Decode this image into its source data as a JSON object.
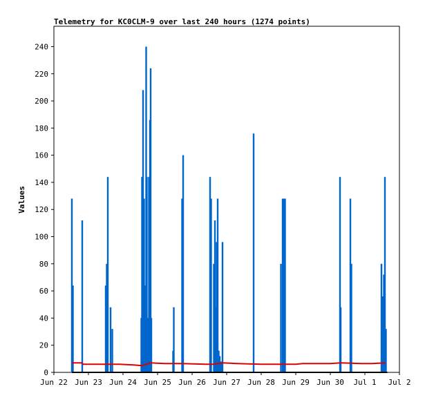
{
  "chart_data": {
    "type": "bar",
    "title": "Telemetry for KC0CLM-9 over last 240 hours (1274 points)",
    "xlabel": "",
    "ylabel": "Values",
    "ylim": [
      0,
      255
    ],
    "xlim_days": [
      0,
      10
    ],
    "x_unit": "days since Jun 22",
    "yticks": [
      0,
      20,
      40,
      60,
      80,
      100,
      120,
      140,
      160,
      180,
      200,
      220,
      240
    ],
    "xticks": [
      {
        "label": "Jun 22",
        "day": 0
      },
      {
        "label": "Jun 23",
        "day": 1
      },
      {
        "label": "Jun 24",
        "day": 2
      },
      {
        "label": "Jun 25",
        "day": 3
      },
      {
        "label": "Jun 26",
        "day": 4
      },
      {
        "label": "Jun 27",
        "day": 5
      },
      {
        "label": "Jun 28",
        "day": 6
      },
      {
        "label": "Jun 29",
        "day": 7
      },
      {
        "label": "Jun 30",
        "day": 8
      },
      {
        "label": "Jul 1",
        "day": 9
      },
      {
        "label": "Jul 2",
        "day": 10
      }
    ],
    "grid": false,
    "series": [
      {
        "name": "",
        "color": "#0066cc",
        "kind": "spikes",
        "points": [
          [
            0.52,
            128
          ],
          [
            0.55,
            64
          ],
          [
            0.82,
            112
          ],
          [
            1.5,
            64
          ],
          [
            1.53,
            80
          ],
          [
            1.56,
            144
          ],
          [
            1.64,
            48
          ],
          [
            1.69,
            32
          ],
          [
            2.53,
            40
          ],
          [
            2.55,
            144
          ],
          [
            2.58,
            208
          ],
          [
            2.61,
            128
          ],
          [
            2.63,
            64
          ],
          [
            2.67,
            240
          ],
          [
            2.69,
            144
          ],
          [
            2.71,
            32
          ],
          [
            2.73,
            40
          ],
          [
            2.75,
            144
          ],
          [
            2.78,
            186
          ],
          [
            2.8,
            224
          ],
          [
            2.82,
            40
          ],
          [
            3.45,
            16
          ],
          [
            3.47,
            48
          ],
          [
            3.71,
            128
          ],
          [
            3.74,
            160
          ],
          [
            4.52,
            144
          ],
          [
            4.55,
            128
          ],
          [
            4.63,
            80
          ],
          [
            4.66,
            112
          ],
          [
            4.69,
            48
          ],
          [
            4.71,
            96
          ],
          [
            4.74,
            128
          ],
          [
            4.77,
            16
          ],
          [
            4.8,
            12
          ],
          [
            4.84,
            8
          ],
          [
            4.88,
            96
          ],
          [
            5.78,
            176
          ],
          [
            6.57,
            80
          ],
          [
            6.62,
            128
          ],
          [
            6.65,
            128
          ],
          [
            6.69,
            128
          ],
          [
            8.28,
            144
          ],
          [
            8.3,
            48
          ],
          [
            8.58,
            128
          ],
          [
            8.61,
            80
          ],
          [
            9.48,
            80
          ],
          [
            9.52,
            56
          ],
          [
            9.55,
            72
          ],
          [
            9.58,
            144
          ],
          [
            9.61,
            32
          ]
        ]
      },
      {
        "name": "",
        "color": "#dd0000",
        "kind": "line",
        "points": [
          [
            0.52,
            7
          ],
          [
            0.8,
            7
          ],
          [
            0.85,
            6
          ],
          [
            1.9,
            6
          ],
          [
            2.3,
            5.5
          ],
          [
            2.55,
            5
          ],
          [
            2.8,
            7
          ],
          [
            3.2,
            6.5
          ],
          [
            3.7,
            6.5
          ],
          [
            4.4,
            6
          ],
          [
            4.6,
            6
          ],
          [
            4.9,
            7
          ],
          [
            5.3,
            6.5
          ],
          [
            6.0,
            6
          ],
          [
            6.6,
            6
          ],
          [
            7.0,
            6
          ],
          [
            7.2,
            6.5
          ],
          [
            8.0,
            6.5
          ],
          [
            8.3,
            7
          ],
          [
            8.9,
            6.5
          ],
          [
            9.2,
            6.5
          ],
          [
            9.6,
            7
          ]
        ]
      },
      {
        "name": "",
        "color": "#000000",
        "kind": "line",
        "points": [
          [
            0.52,
            0
          ],
          [
            9.65,
            0
          ]
        ]
      }
    ]
  }
}
